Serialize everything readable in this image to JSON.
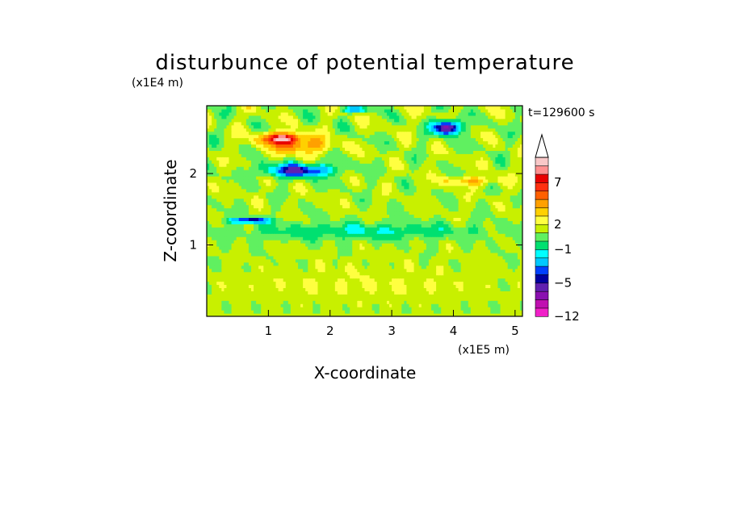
{
  "chart_data": {
    "type": "heatmap",
    "title": "disturbunce of potential temperature",
    "xlabel": "X-coordinate",
    "ylabel": "Z-coordinate",
    "x_unit_label": "(x1E5 m)",
    "y_unit_label": "(x1E4 m)",
    "time_label": "t=129600 s",
    "xlim": [
      0,
      5.12
    ],
    "ylim": [
      0,
      2.95
    ],
    "x_ticks": [
      {
        "value": 1,
        "label": "1"
      },
      {
        "value": 2,
        "label": "2"
      },
      {
        "value": 3,
        "label": "3"
      },
      {
        "value": 4,
        "label": "4"
      },
      {
        "value": 5,
        "label": "5"
      }
    ],
    "y_ticks": [
      {
        "value": 1,
        "label": "1"
      },
      {
        "value": 2,
        "label": "2"
      }
    ],
    "colorbar": {
      "levels": [
        -12,
        -10,
        -8,
        -6,
        -5,
        -4,
        -3,
        -2,
        -1,
        0,
        1,
        2,
        3,
        4,
        5,
        6,
        7,
        8,
        9,
        10
      ],
      "colors": [
        "#f020c8",
        "#c010b0",
        "#8a10b0",
        "#6020b0",
        "#0000a0",
        "#0040ff",
        "#00c8ff",
        "#00ffff",
        "#00e070",
        "#60f060",
        "#c8f000",
        "#ffff40",
        "#ffd000",
        "#ffa000",
        "#ff6000",
        "#ff3010",
        "#e80000",
        "#ff9090",
        "#f8c8c8"
      ],
      "top_extension_color": "#ffffff",
      "tick_labels": [
        {
          "value": -12,
          "label": "-12"
        },
        {
          "value": -5,
          "label": "-5"
        },
        {
          "value": -1,
          "label": "-1"
        },
        {
          "value": 2,
          "label": "2"
        },
        {
          "value": 7,
          "label": "7"
        }
      ]
    },
    "field_regions": [
      {
        "x": 1.2,
        "z": 2.5,
        "rx": 0.4,
        "rz": 0.1,
        "value": 8
      },
      {
        "x": 1.5,
        "z": 2.4,
        "rx": 0.6,
        "rz": 0.15,
        "value": 5
      },
      {
        "x": 1.5,
        "z": 2.05,
        "rx": 0.7,
        "rz": 0.12,
        "value": -5
      },
      {
        "x": 3.9,
        "z": 2.65,
        "rx": 0.25,
        "rz": 0.12,
        "value": -8
      },
      {
        "x": 0.7,
        "z": 1.35,
        "rx": 0.4,
        "rz": 0.05,
        "value": -5
      },
      {
        "x": 2.5,
        "z": 1.2,
        "rx": 2.6,
        "rz": 0.15,
        "value": -1
      },
      {
        "x": 2.5,
        "z": 0.45,
        "rx": 2.6,
        "rz": 0.35,
        "value": 2
      },
      {
        "x": 4.3,
        "z": 1.9,
        "rx": 0.6,
        "rz": 0.08,
        "value": 4
      },
      {
        "x": 2.4,
        "z": 2.9,
        "rx": 0.3,
        "rz": 0.05,
        "value": -3
      }
    ]
  }
}
